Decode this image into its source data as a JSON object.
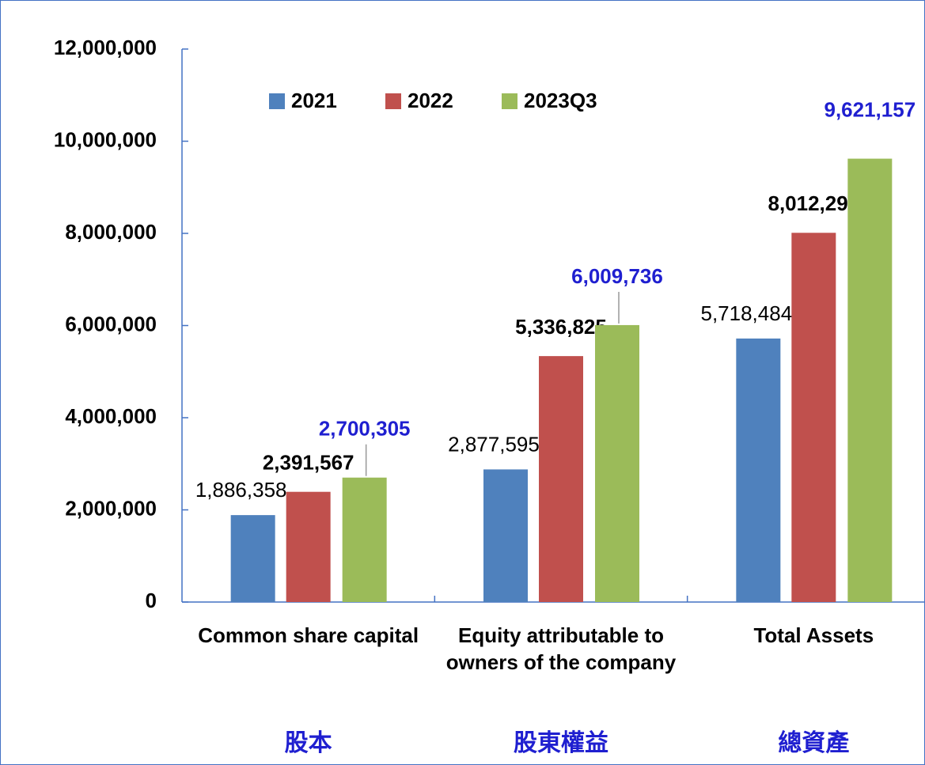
{
  "chart_data": {
    "type": "bar",
    "categories": [
      "Common share capital",
      "Equity attributable to owners of the company",
      "Total Assets"
    ],
    "categories_zh": [
      "股本",
      "股東權益",
      "總資產"
    ],
    "series": [
      {
        "name": "2021",
        "color": "#4f81bd",
        "values": [
          1886358,
          2877595,
          5718484
        ],
        "value_labels": [
          "1,886,358",
          "2,877,595",
          "5,718,484"
        ]
      },
      {
        "name": "2022",
        "color": "#c0504d",
        "values": [
          2391567,
          5336825,
          8012292
        ],
        "value_labels": [
          "2,391,567",
          "5,336,825",
          "8,012,292"
        ]
      },
      {
        "name": "2023Q3",
        "color": "#9bbb59",
        "values": [
          2700305,
          6009736,
          9621157
        ],
        "value_labels": [
          "2,700,305",
          "6,009,736",
          "9,621,157"
        ]
      }
    ],
    "ylim": [
      0,
      12000000
    ],
    "yticks": [
      0,
      {
        "value": 2000000,
        "label": "2,000,000"
      },
      {
        "value": 4000000,
        "label": "4,000,000"
      },
      {
        "value": 6000000,
        "label": "6,000,000"
      },
      {
        "value": 8000000,
        "label": "8,000,000"
      },
      {
        "value": 10000000,
        "label": "10,000,000"
      },
      {
        "value": 12000000,
        "label": "12,000,000"
      }
    ],
    "legend": "top"
  }
}
